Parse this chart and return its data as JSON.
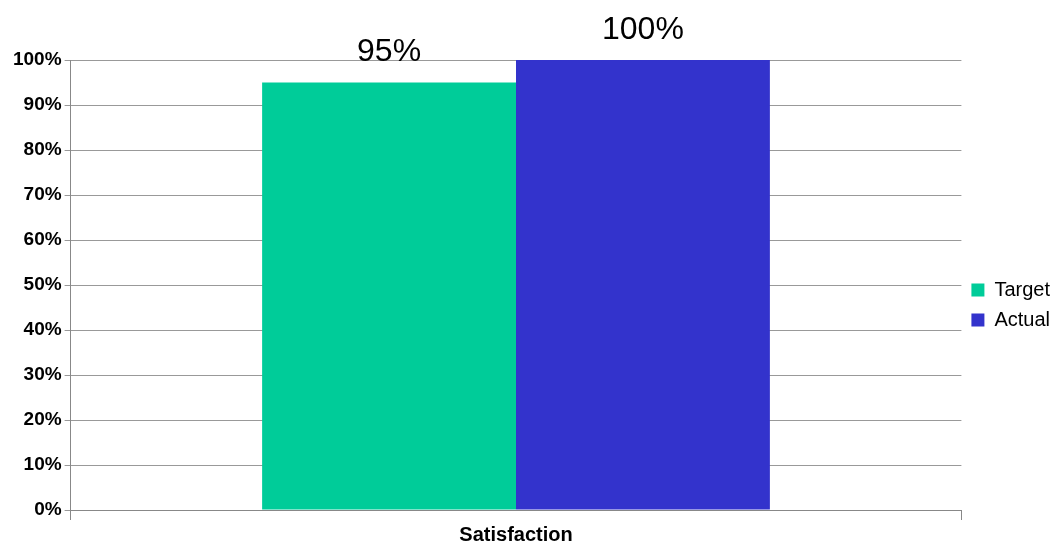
{
  "chart_data": {
    "type": "bar",
    "categories": [
      "Satisfaction"
    ],
    "series": [
      {
        "name": "Target",
        "color": "#00cc99",
        "values": [
          95
        ],
        "value_labels": [
          "95%"
        ]
      },
      {
        "name": "Actual",
        "color": "#3333cc",
        "values": [
          100
        ],
        "value_labels": [
          "100%"
        ]
      }
    ],
    "ylim": [
      0,
      100
    ],
    "yticks": [
      {
        "value": 0,
        "label": "0%"
      },
      {
        "value": 10,
        "label": "10%"
      },
      {
        "value": 20,
        "label": "20%"
      },
      {
        "value": 30,
        "label": "30%"
      },
      {
        "value": 40,
        "label": "40%"
      },
      {
        "value": 50,
        "label": "50%"
      },
      {
        "value": 60,
        "label": "60%"
      },
      {
        "value": 70,
        "label": "70%"
      },
      {
        "value": 80,
        "label": "80%"
      },
      {
        "value": 90,
        "label": "90%"
      },
      {
        "value": 100,
        "label": "100%"
      }
    ],
    "grid": "y",
    "legend": "right"
  }
}
